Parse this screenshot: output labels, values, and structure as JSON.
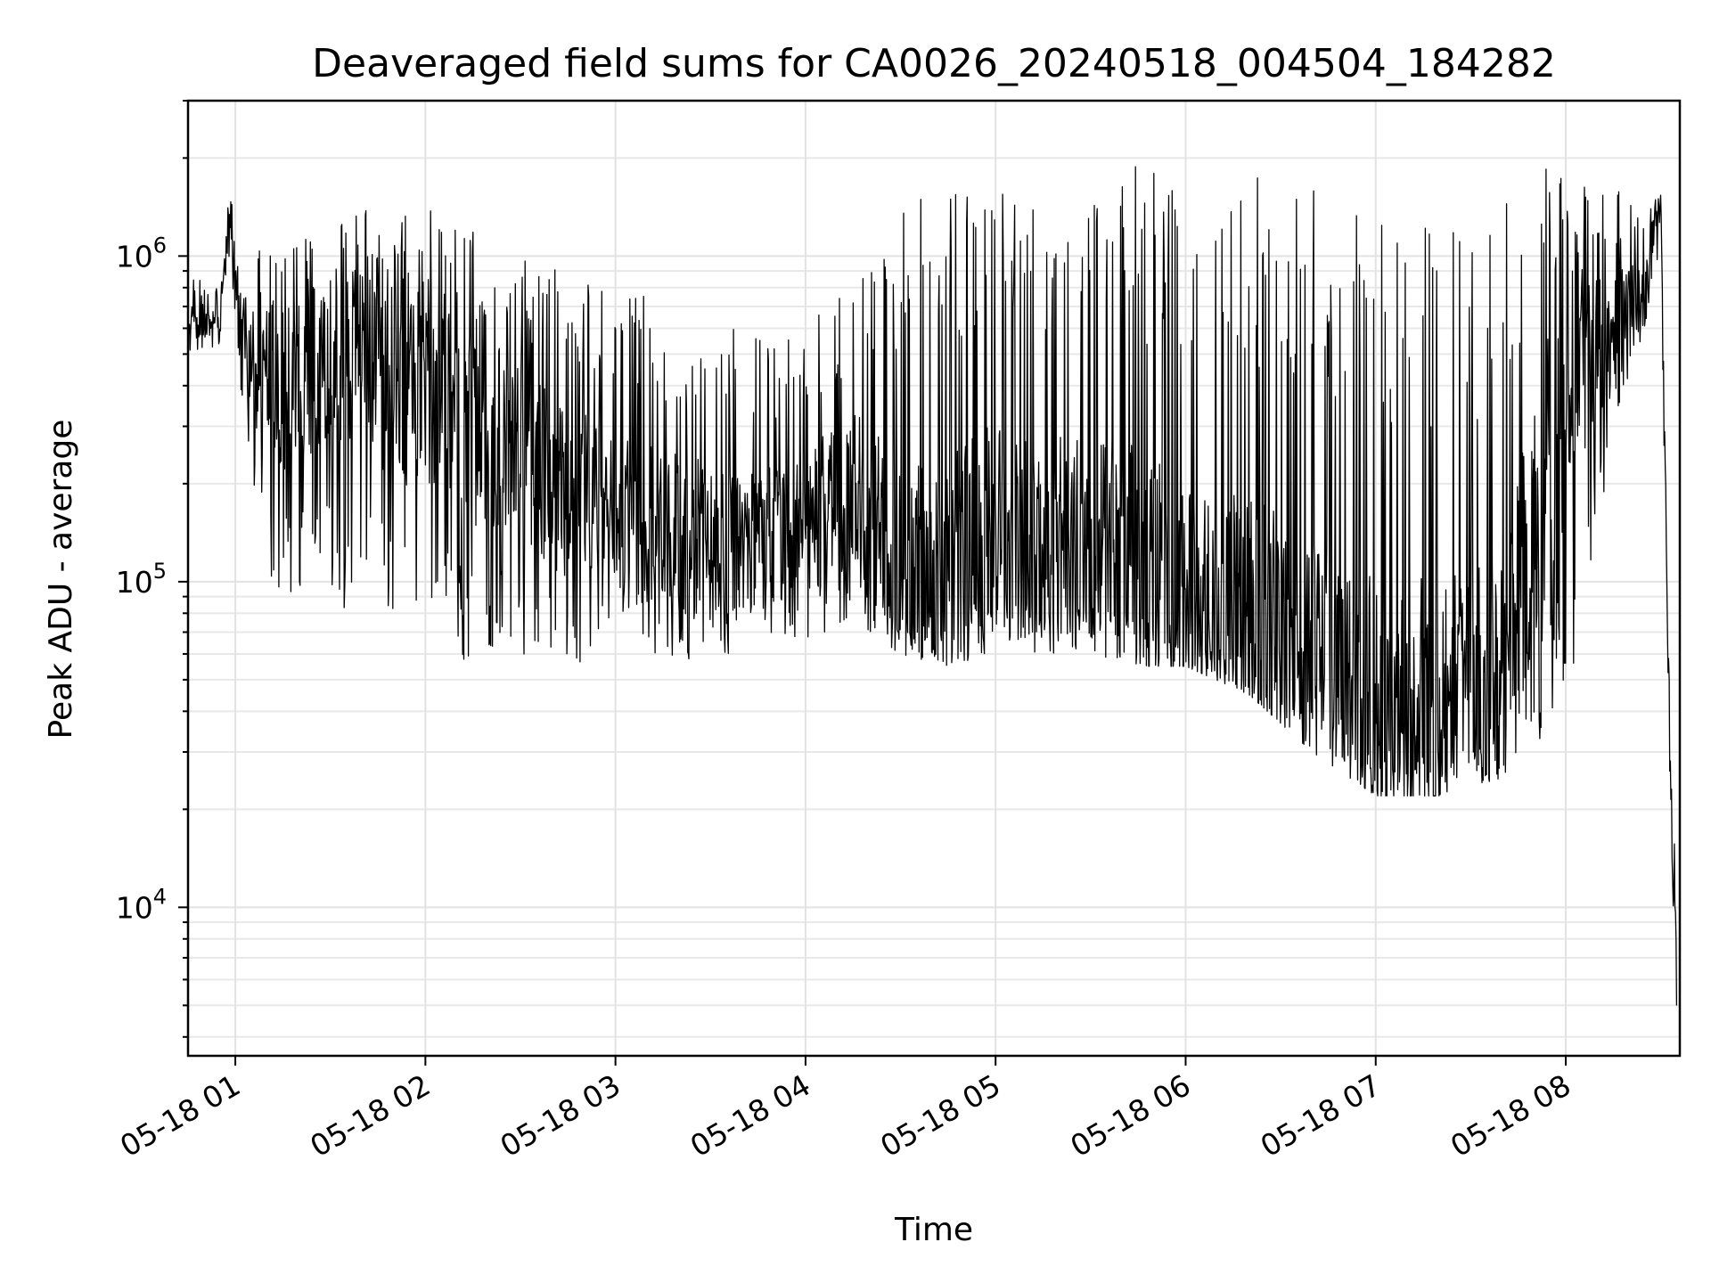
{
  "chart_data": {
    "type": "line",
    "title": "Deaveraged field sums for CA0026_20240518_004504_184282",
    "xlabel": "Time",
    "ylabel": "Peak ADU - average",
    "yscale": "log",
    "ylim": [
      3500,
      3000000
    ],
    "xlim": [
      "2024-05-18T00:45:04",
      "2024-05-18T08:36:00"
    ],
    "grid": true,
    "x_ticks": [
      "2024-05-18T01:00",
      "2024-05-18T02:00",
      "2024-05-18T03:00",
      "2024-05-18T04:00",
      "2024-05-18T05:00",
      "2024-05-18T06:00",
      "2024-05-18T07:00",
      "2024-05-18T08:00"
    ],
    "x_tick_labels": [
      "05-18 01",
      "05-18 02",
      "05-18 03",
      "05-18 04",
      "05-18 05",
      "05-18 06",
      "05-18 07",
      "05-18 08"
    ],
    "y_ticks": [
      10000,
      100000,
      1000000
    ],
    "y_tick_labels": [
      {
        "base": "10",
        "exp": "4"
      },
      {
        "base": "10",
        "exp": "5"
      },
      {
        "base": "10",
        "exp": "6"
      }
    ],
    "series": [
      {
        "color": "#000000",
        "x": [
          "2024-05-18T00:45",
          "2024-05-18T00:50",
          "2024-05-18T00:55",
          "2024-05-18T00:58",
          "2024-05-18T01:02",
          "2024-05-18T01:10",
          "2024-05-18T01:20",
          "2024-05-18T01:30",
          "2024-05-18T01:40",
          "2024-05-18T01:50",
          "2024-05-18T02:00",
          "2024-05-18T02:15",
          "2024-05-18T02:30",
          "2024-05-18T02:45",
          "2024-05-18T03:00",
          "2024-05-18T03:20",
          "2024-05-18T03:40",
          "2024-05-18T04:00",
          "2024-05-18T04:15",
          "2024-05-18T04:30",
          "2024-05-18T04:45",
          "2024-05-18T05:00",
          "2024-05-18T05:15",
          "2024-05-18T05:30",
          "2024-05-18T05:45",
          "2024-05-18T06:00",
          "2024-05-18T06:20",
          "2024-05-18T06:40",
          "2024-05-18T07:00",
          "2024-05-18T07:20",
          "2024-05-18T07:40",
          "2024-05-18T07:55",
          "2024-05-18T08:05",
          "2024-05-18T08:15",
          "2024-05-18T08:25",
          "2024-05-18T08:30",
          "2024-05-18T08:33",
          "2024-05-18T08:35"
        ],
        "y_median": [
          650000,
          640000,
          600000,
          1300000,
          600000,
          350000,
          420000,
          480000,
          460000,
          400000,
          380000,
          300000,
          240000,
          190000,
          160000,
          140000,
          130000,
          150000,
          200000,
          110000,
          110000,
          150000,
          130000,
          140000,
          120000,
          90000,
          80000,
          60000,
          45000,
          40000,
          55000,
          250000,
          500000,
          600000,
          900000,
          1450000,
          20000,
          8000
        ],
        "y_high": [
          900000,
          850000,
          800000,
          1600000,
          1100000,
          1050000,
          1300000,
          1400000,
          1400000,
          1300000,
          1400000,
          1200000,
          1050000,
          900000,
          800000,
          700000,
          600000,
          600000,
          900000,
          1600000,
          1700000,
          1800000,
          1800000,
          1800000,
          1900000,
          1900000,
          1800000,
          1800000,
          1400000,
          1300000,
          1400000,
          2100000,
          1900000,
          1600000,
          1500000,
          1550000,
          33000,
          12000
        ],
        "y_low": [
          500000,
          520000,
          500000,
          900000,
          350000,
          100000,
          90000,
          90000,
          70000,
          65000,
          60000,
          55000,
          55000,
          55000,
          60000,
          55000,
          60000,
          65000,
          75000,
          60000,
          55000,
          60000,
          60000,
          55000,
          55000,
          55000,
          45000,
          30000,
          22000,
          22000,
          25000,
          35000,
          60000,
          300000,
          600000,
          1000000,
          15000,
          4700
        ]
      }
    ]
  }
}
